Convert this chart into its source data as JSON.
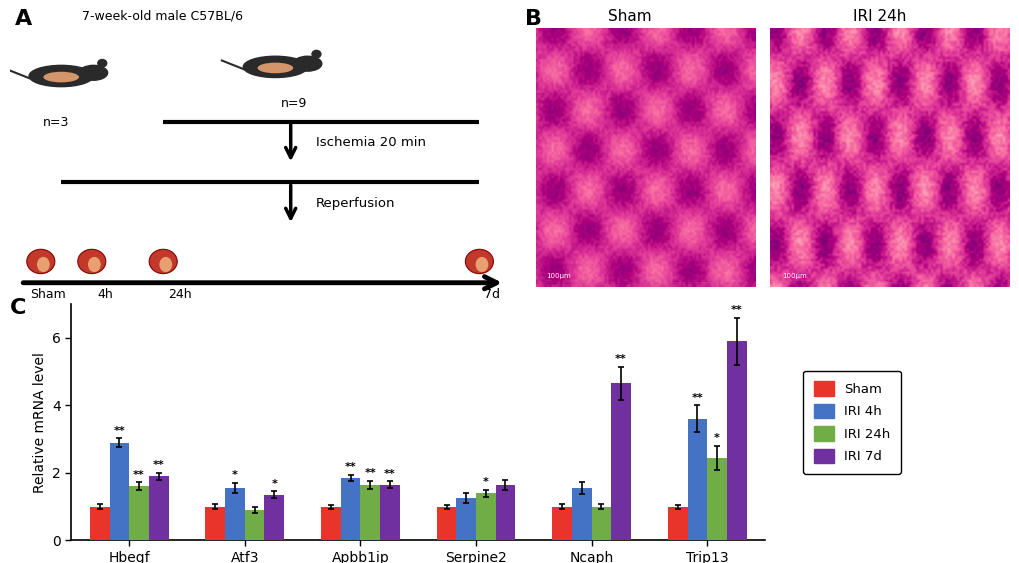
{
  "panel_C": {
    "genes": [
      "Hbegf",
      "Atf3",
      "Apbb1ip",
      "Serpine2",
      "Ncaph",
      "Trip13"
    ],
    "groups": [
      "Sham",
      "IRI 4h",
      "IRI 24h",
      "IRI 7d"
    ],
    "colors": [
      "#e8342a",
      "#4472c4",
      "#70ad47",
      "#7030a0"
    ],
    "bar_values": [
      [
        1.0,
        2.9,
        1.6,
        1.9
      ],
      [
        1.0,
        1.55,
        0.9,
        1.35
      ],
      [
        1.0,
        1.85,
        1.65,
        1.65
      ],
      [
        1.0,
        1.25,
        1.4,
        1.65
      ],
      [
        1.0,
        1.55,
        1.0,
        4.65
      ],
      [
        1.0,
        3.6,
        2.45,
        5.9
      ]
    ],
    "bar_errors": [
      [
        0.07,
        0.12,
        0.12,
        0.1
      ],
      [
        0.08,
        0.15,
        0.08,
        0.1
      ],
      [
        0.06,
        0.1,
        0.12,
        0.1
      ],
      [
        0.06,
        0.15,
        0.1,
        0.15
      ],
      [
        0.08,
        0.18,
        0.08,
        0.5
      ],
      [
        0.06,
        0.4,
        0.35,
        0.7
      ]
    ],
    "significance": [
      [
        "",
        "**",
        "**",
        "**"
      ],
      [
        "",
        "*",
        "",
        "*"
      ],
      [
        "",
        "**",
        "**",
        "**"
      ],
      [
        "",
        "",
        "*",
        ""
      ],
      [
        "",
        "",
        "",
        "**"
      ],
      [
        "",
        "**",
        "*",
        "**"
      ]
    ],
    "ylabel": "Relative mRNA level",
    "ylim": [
      0,
      7.0
    ],
    "yticks": [
      0,
      2,
      4,
      6
    ]
  },
  "panel_A": {
    "title": "7-week-old male C57BL/6",
    "n_sham": "n=3",
    "n_iri": "n=9",
    "ischemia_label": "Ischemia 20 min",
    "reperfusion_label": "Reperfusion",
    "timepoints": [
      "Sham",
      "4h",
      "24h",
      "7d"
    ],
    "timepoint_xpos": [
      0.04,
      0.17,
      0.31,
      0.93
    ]
  },
  "panel_B": {
    "title_sham": "Sham",
    "title_iri": "IRI 24h"
  },
  "label_A": "A",
  "label_B": "B",
  "label_C": "C",
  "bg_color": "#ffffff"
}
